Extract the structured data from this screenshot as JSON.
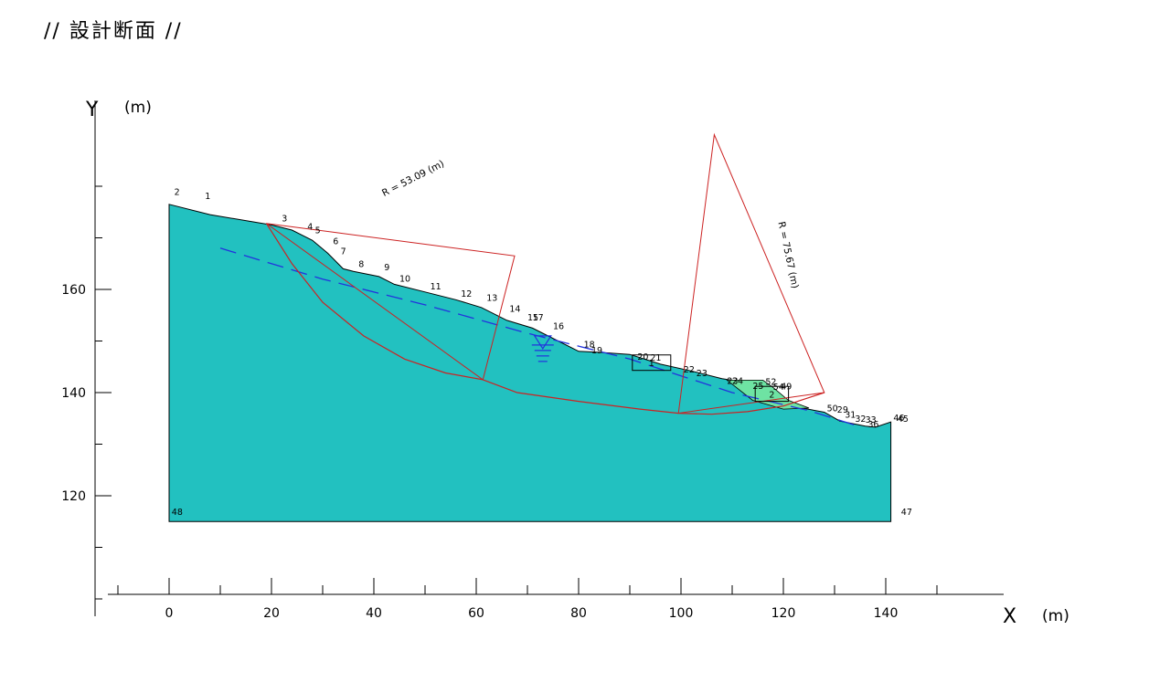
{
  "title": "// 設計断面 //",
  "axes": {
    "x_name": "X",
    "x_unit": "(m)",
    "y_name": "Y",
    "y_unit": "(m)",
    "x_ticks": [
      "0",
      "20",
      "40",
      "60",
      "80",
      "100",
      "120",
      "140"
    ],
    "y_ticks": [
      "120",
      "140",
      "160"
    ]
  },
  "colors": {
    "ground": "#22c1c0",
    "zone2": "#6ee3a3",
    "slip": "#cc2222",
    "water": "#2233dd",
    "axis": "#000000"
  },
  "chart_data": {
    "type": "diagram",
    "xlim": [
      -12,
      162
    ],
    "ylim": [
      95,
      187
    ],
    "x_tick_values": [
      0,
      20,
      40,
      60,
      80,
      100,
      120,
      140
    ],
    "y_tick_values": [
      120,
      140,
      160
    ],
    "ground_surface": [
      [
        0,
        176.5
      ],
      [
        8,
        174.5
      ],
      [
        20,
        172.5
      ],
      [
        24,
        171.5
      ],
      [
        28,
        169.5
      ],
      [
        31,
        167
      ],
      [
        34,
        164
      ],
      [
        36,
        163.5
      ],
      [
        41,
        162.5
      ],
      [
        44,
        161
      ],
      [
        50,
        159.5
      ],
      [
        56,
        158
      ],
      [
        61,
        156.5
      ],
      [
        66,
        154
      ],
      [
        71,
        152.5
      ],
      [
        76,
        150
      ],
      [
        80,
        148
      ],
      [
        84,
        147.8
      ],
      [
        90,
        147.4
      ],
      [
        96,
        145.5
      ],
      [
        102,
        144.2
      ],
      [
        108,
        142.7
      ],
      [
        114,
        141.8
      ],
      [
        118,
        139.5
      ],
      [
        121,
        137.5
      ],
      [
        128,
        136.2
      ],
      [
        131,
        134.5
      ],
      [
        136,
        133.5
      ],
      [
        138,
        133.3
      ],
      [
        141,
        134.3
      ],
      [
        141,
        115
      ],
      [
        0,
        115
      ]
    ],
    "zone2_polygon": [
      [
        109,
        142.4
      ],
      [
        116,
        142.4
      ],
      [
        118,
        141
      ],
      [
        121,
        138.5
      ],
      [
        125,
        137
      ],
      [
        120,
        136.8
      ],
      [
        114,
        138.5
      ]
    ],
    "water_table": [
      [
        10,
        168
      ],
      [
        30,
        162
      ],
      [
        50,
        157
      ],
      [
        70,
        151.5
      ],
      [
        90,
        146.5
      ],
      [
        110,
        140
      ],
      [
        125,
        136.5
      ],
      [
        134,
        133.7
      ]
    ],
    "water_marker": [
      73,
      151
    ],
    "slip_surfaces": [
      {
        "radius_label": "R = 53.09 (m)",
        "center": [
          67.5,
          166.5
        ],
        "entry": [
          19,
          172.8
        ],
        "exit": [
          61.3,
          142.5
        ],
        "arc": [
          [
            19,
            172.8
          ],
          [
            24,
            165
          ],
          [
            30,
            157.5
          ],
          [
            38,
            151
          ],
          [
            46,
            146.5
          ],
          [
            54,
            143.8
          ],
          [
            61.3,
            142.5
          ]
        ],
        "label_pos": [
          42,
          178
        ],
        "label_angle": -27
      },
      {
        "radius_label": "R = 75.67 (m)",
        "center": [
          106.5,
          190
        ],
        "entry": [
          99.5,
          136
        ],
        "exit": [
          128,
          140
        ],
        "arc": [
          [
            61.3,
            142.5
          ],
          [
            68,
            140
          ],
          [
            80,
            138.3
          ],
          [
            92,
            136.8
          ],
          [
            99.5,
            136
          ],
          [
            106,
            135.8
          ],
          [
            113,
            136.3
          ],
          [
            120,
            137.4
          ],
          [
            128,
            140
          ]
        ],
        "label_pos": [
          119,
          173
        ],
        "label_angle": 78
      }
    ],
    "boxes": [
      {
        "label": "1",
        "x": [
          90.5,
          98
        ],
        "y": [
          144.3,
          147.3
        ]
      },
      {
        "label": "2",
        "x": [
          114.5,
          121
        ],
        "y": [
          138.3,
          141.2
        ]
      }
    ],
    "point_labels": [
      {
        "t": "1",
        "x": 7,
        "y": 177.5
      },
      {
        "t": "2",
        "x": 1,
        "y": 178.3
      },
      {
        "t": "3",
        "x": 22,
        "y": 173.2
      },
      {
        "t": "4",
        "x": 27,
        "y": 171.6
      },
      {
        "t": "5",
        "x": 28.5,
        "y": 170.9
      },
      {
        "t": "6",
        "x": 32,
        "y": 168.8
      },
      {
        "t": "7",
        "x": 33.5,
        "y": 166.8
      },
      {
        "t": "8",
        "x": 37,
        "y": 164.3
      },
      {
        "t": "9",
        "x": 42,
        "y": 163.7
      },
      {
        "t": "10",
        "x": 45,
        "y": 161.5
      },
      {
        "t": "11",
        "x": 51,
        "y": 160
      },
      {
        "t": "12",
        "x": 57,
        "y": 158.6
      },
      {
        "t": "13",
        "x": 62,
        "y": 157.8
      },
      {
        "t": "14",
        "x": 66.5,
        "y": 155.7
      },
      {
        "t": "15",
        "x": 70,
        "y": 154
      },
      {
        "t": "17",
        "x": 71,
        "y": 154
      },
      {
        "t": "16",
        "x": 75,
        "y": 152.3
      },
      {
        "t": "18",
        "x": 81,
        "y": 148.8
      },
      {
        "t": "19",
        "x": 82.5,
        "y": 147.6
      },
      {
        "t": "20",
        "x": 91.5,
        "y": 146.4
      },
      {
        "t": "21",
        "x": 94,
        "y": 146.2
      },
      {
        "t": "22",
        "x": 100.5,
        "y": 143.9
      },
      {
        "t": "23",
        "x": 103,
        "y": 143.2
      },
      {
        "t": "23",
        "x": 109,
        "y": 141.7
      },
      {
        "t": "24",
        "x": 110,
        "y": 141.7
      },
      {
        "t": "25",
        "x": 114,
        "y": 140.7
      },
      {
        "t": "52",
        "x": 116.5,
        "y": 141.5
      },
      {
        "t": "54",
        "x": 118,
        "y": 140.5
      },
      {
        "t": "49",
        "x": 119.5,
        "y": 140.6
      },
      {
        "t": "50",
        "x": 128.5,
        "y": 136.4
      },
      {
        "t": "29",
        "x": 130.5,
        "y": 136.1
      },
      {
        "t": "31",
        "x": 132,
        "y": 135.1
      },
      {
        "t": "32",
        "x": 134,
        "y": 134.3
      },
      {
        "t": "33",
        "x": 136,
        "y": 134.2
      },
      {
        "t": "36",
        "x": 136.5,
        "y": 133.3
      },
      {
        "t": "48",
        "x": 0.5,
        "y": 116.3
      },
      {
        "t": "47",
        "x": 143,
        "y": 116.3
      },
      {
        "t": "46",
        "x": 141.5,
        "y": 134.5
      },
      {
        "t": "45",
        "x": 142.3,
        "y": 134.3
      }
    ]
  }
}
